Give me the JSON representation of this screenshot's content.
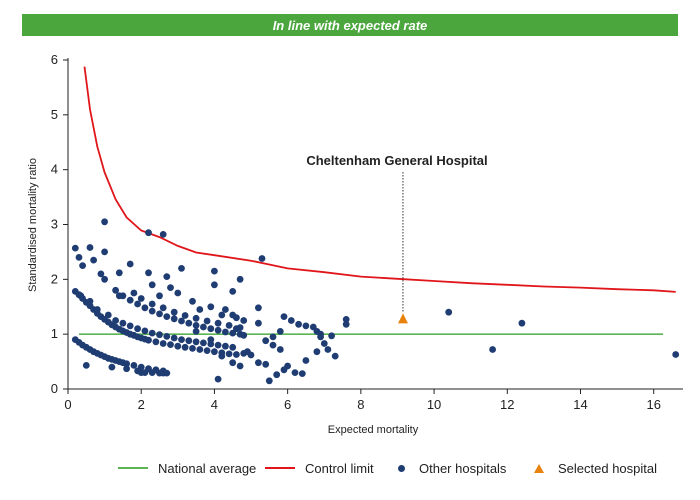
{
  "banner": {
    "text": "In line with expected rate",
    "color": "#4aa63d"
  },
  "chart_data": {
    "type": "scatter",
    "title": "In line with expected rate",
    "xlabel": "Expected mortality",
    "ylabel": "Standardised mortality ratio",
    "xlim": [
      0,
      16.8
    ],
    "ylim": [
      0,
      6
    ],
    "xticks": [
      0,
      2,
      4,
      6,
      8,
      10,
      12,
      14,
      16
    ],
    "yticks": [
      0,
      1,
      2,
      3,
      4,
      5,
      6
    ],
    "grid": false,
    "legend_position": "bottom",
    "colors": {
      "national_average": "#5ab552",
      "control_limit": "#e0161b",
      "other_hospitals": "#1f3d73",
      "selected_hospital": "#e8820c"
    },
    "national_average": 1.0,
    "control_limit": {
      "x": [
        0.45,
        0.6,
        0.8,
        1.0,
        1.3,
        1.6,
        2.0,
        2.5,
        3.0,
        3.5,
        4.0,
        5.0,
        6.0,
        7.0,
        8.0,
        9.0,
        10.0,
        11.0,
        12.0,
        13.0,
        14.0,
        15.0,
        16.0,
        16.6
      ],
      "y": [
        5.88,
        5.1,
        4.42,
        3.95,
        3.46,
        3.13,
        2.89,
        2.77,
        2.61,
        2.49,
        2.44,
        2.34,
        2.2,
        2.13,
        2.05,
        2.01,
        1.97,
        1.93,
        1.9,
        1.87,
        1.85,
        1.82,
        1.8,
        1.77
      ]
    },
    "other_hospitals": [
      [
        0.2,
        0.9
      ],
      [
        0.3,
        0.85
      ],
      [
        0.4,
        0.8
      ],
      [
        0.5,
        0.76
      ],
      [
        0.6,
        0.72
      ],
      [
        0.7,
        0.68
      ],
      [
        0.8,
        0.65
      ],
      [
        0.9,
        0.62
      ],
      [
        1.0,
        0.59
      ],
      [
        1.1,
        0.56
      ],
      [
        1.2,
        0.54
      ],
      [
        1.3,
        0.52
      ],
      [
        1.4,
        0.5
      ],
      [
        1.5,
        0.48
      ],
      [
        1.6,
        0.46
      ],
      [
        1.8,
        0.43
      ],
      [
        2.0,
        0.4
      ],
      [
        2.2,
        0.37
      ],
      [
        2.4,
        0.35
      ],
      [
        2.6,
        0.33
      ],
      [
        0.5,
        0.43
      ],
      [
        1.2,
        0.4
      ],
      [
        1.6,
        0.37
      ],
      [
        1.9,
        0.33
      ],
      [
        2.0,
        0.3
      ],
      [
        2.1,
        0.3
      ],
      [
        2.3,
        0.3
      ],
      [
        2.5,
        0.29
      ],
      [
        2.6,
        0.29
      ],
      [
        2.7,
        0.29
      ],
      [
        0.2,
        1.78
      ],
      [
        0.3,
        1.72
      ],
      [
        0.4,
        1.65
      ],
      [
        0.5,
        1.58
      ],
      [
        0.6,
        1.52
      ],
      [
        0.7,
        1.45
      ],
      [
        0.8,
        1.38
      ],
      [
        0.9,
        1.32
      ],
      [
        1.0,
        1.27
      ],
      [
        1.1,
        1.22
      ],
      [
        1.2,
        1.17
      ],
      [
        1.3,
        1.13
      ],
      [
        1.4,
        1.09
      ],
      [
        1.5,
        1.06
      ],
      [
        1.6,
        1.03
      ],
      [
        1.7,
        1.0
      ],
      [
        1.8,
        0.98
      ],
      [
        1.9,
        0.95
      ],
      [
        2.0,
        0.93
      ],
      [
        2.1,
        0.91
      ],
      [
        2.2,
        0.89
      ],
      [
        2.4,
        0.86
      ],
      [
        2.6,
        0.83
      ],
      [
        2.8,
        0.81
      ],
      [
        3.0,
        0.78
      ],
      [
        3.2,
        0.76
      ],
      [
        3.4,
        0.74
      ],
      [
        3.6,
        0.72
      ],
      [
        3.8,
        0.7
      ],
      [
        4.0,
        0.68
      ],
      [
        4.2,
        0.66
      ],
      [
        4.4,
        0.64
      ],
      [
        4.6,
        0.63
      ],
      [
        0.35,
        1.7
      ],
      [
        0.6,
        1.6
      ],
      [
        0.8,
        1.45
      ],
      [
        1.1,
        1.35
      ],
      [
        1.3,
        1.25
      ],
      [
        1.5,
        1.2
      ],
      [
        1.7,
        1.15
      ],
      [
        1.9,
        1.1
      ],
      [
        2.1,
        1.06
      ],
      [
        2.3,
        1.02
      ],
      [
        2.5,
        0.99
      ],
      [
        2.7,
        0.96
      ],
      [
        2.9,
        0.93
      ],
      [
        3.1,
        0.9
      ],
      [
        3.3,
        0.88
      ],
      [
        3.5,
        0.86
      ],
      [
        3.7,
        0.84
      ],
      [
        3.9,
        0.82
      ],
      [
        4.1,
        0.8
      ],
      [
        4.3,
        0.78
      ],
      [
        4.5,
        0.76
      ],
      [
        1.3,
        1.8
      ],
      [
        1.5,
        1.7
      ],
      [
        1.7,
        1.62
      ],
      [
        1.9,
        1.55
      ],
      [
        2.1,
        1.48
      ],
      [
        2.3,
        1.42
      ],
      [
        2.5,
        1.37
      ],
      [
        2.7,
        1.32
      ],
      [
        2.9,
        1.28
      ],
      [
        3.1,
        1.24
      ],
      [
        3.3,
        1.2
      ],
      [
        3.5,
        1.16
      ],
      [
        3.7,
        1.13
      ],
      [
        3.9,
        1.1
      ],
      [
        4.1,
        1.07
      ],
      [
        4.3,
        1.04
      ],
      [
        4.5,
        1.02
      ],
      [
        4.7,
        1.0
      ],
      [
        2.0,
        1.65
      ],
      [
        2.3,
        1.55
      ],
      [
        2.6,
        1.48
      ],
      [
        2.9,
        1.4
      ],
      [
        3.2,
        1.34
      ],
      [
        3.5,
        1.29
      ],
      [
        3.8,
        1.24
      ],
      [
        4.1,
        1.2
      ],
      [
        4.4,
        1.16
      ],
      [
        4.7,
        1.12
      ],
      [
        1.0,
        2.0
      ],
      [
        1.4,
        1.7
      ],
      [
        1.8,
        1.75
      ],
      [
        2.3,
        1.9
      ],
      [
        2.5,
        1.7
      ],
      [
        2.8,
        1.85
      ],
      [
        3.0,
        1.75
      ],
      [
        3.4,
        1.6
      ],
      [
        3.6,
        1.45
      ],
      [
        3.9,
        1.5
      ],
      [
        4.3,
        1.45
      ],
      [
        4.5,
        1.35
      ],
      [
        4.6,
        1.3
      ],
      [
        4.8,
        1.25
      ],
      [
        0.2,
        2.57
      ],
      [
        0.3,
        2.4
      ],
      [
        0.4,
        2.25
      ],
      [
        0.6,
        2.58
      ],
      [
        0.7,
        2.35
      ],
      [
        0.9,
        2.1
      ],
      [
        1.0,
        2.5
      ],
      [
        1.4,
        2.12
      ],
      [
        1.7,
        2.28
      ],
      [
        2.2,
        2.12
      ],
      [
        2.7,
        2.05
      ],
      [
        3.1,
        2.2
      ],
      [
        4.0,
        2.15
      ],
      [
        1.0,
        3.05
      ],
      [
        2.2,
        2.85
      ],
      [
        2.6,
        2.82
      ],
      [
        5.3,
        2.38
      ],
      [
        3.5,
        1.05
      ],
      [
        3.9,
        0.9
      ],
      [
        4.2,
        0.6
      ],
      [
        4.5,
        0.48
      ],
      [
        4.7,
        0.42
      ],
      [
        4.8,
        0.65
      ],
      [
        4.9,
        0.68
      ],
      [
        5.0,
        0.62
      ],
      [
        5.2,
        0.48
      ],
      [
        5.4,
        0.45
      ],
      [
        4.1,
        0.18
      ],
      [
        5.5,
        0.15
      ],
      [
        5.7,
        0.26
      ],
      [
        5.9,
        0.35
      ],
      [
        6.0,
        0.42
      ],
      [
        5.6,
        0.8
      ],
      [
        5.8,
        0.72
      ],
      [
        6.2,
        0.3
      ],
      [
        6.4,
        0.28
      ],
      [
        6.5,
        0.52
      ],
      [
        6.8,
        0.68
      ],
      [
        4.2,
        1.35
      ],
      [
        4.6,
        1.1
      ],
      [
        4.8,
        0.98
      ],
      [
        5.2,
        1.2
      ],
      [
        5.4,
        0.88
      ],
      [
        5.6,
        0.95
      ],
      [
        5.8,
        1.05
      ],
      [
        5.9,
        1.32
      ],
      [
        6.1,
        1.25
      ],
      [
        6.3,
        1.18
      ],
      [
        6.5,
        1.15
      ],
      [
        6.7,
        1.13
      ],
      [
        6.8,
        1.05
      ],
      [
        6.9,
        0.95
      ],
      [
        7.0,
        0.83
      ],
      [
        7.1,
        0.72
      ],
      [
        7.3,
        0.6
      ],
      [
        7.6,
        1.27
      ],
      [
        7.6,
        1.18
      ],
      [
        5.2,
        1.48
      ],
      [
        4.5,
        1.78
      ],
      [
        4.7,
        2.0
      ],
      [
        4.0,
        1.9
      ],
      [
        6.9,
        1.0
      ],
      [
        7.2,
        0.97
      ],
      [
        10.4,
        1.4
      ],
      [
        11.6,
        0.72
      ],
      [
        12.4,
        1.2
      ],
      [
        16.6,
        0.63
      ]
    ],
    "selected_hospital": {
      "name": "Cheltenham General Hospital",
      "x": 9.15,
      "y": 1.27
    }
  },
  "legend": {
    "national_average": "National average",
    "control_limit": "Control limit",
    "other_hospitals": "Other hospitals",
    "selected_hospital": "Selected hospital"
  }
}
